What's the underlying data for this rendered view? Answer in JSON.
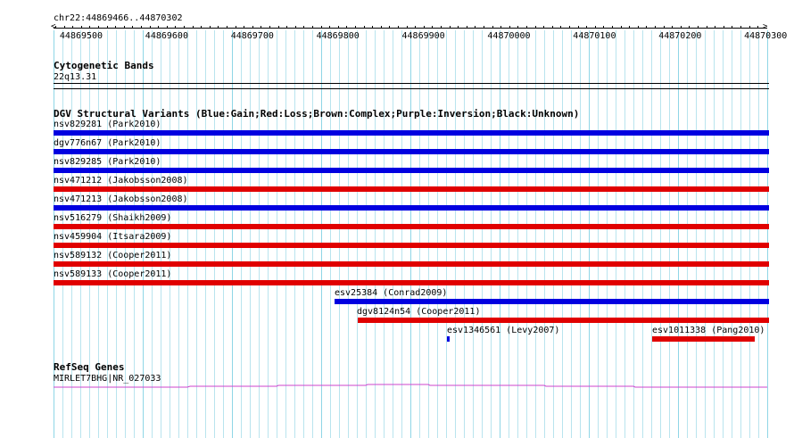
{
  "ruler": {
    "region_label": "chr22:44869466..44870302",
    "ticks": [
      "44869500",
      "44869600",
      "44869700",
      "44869800",
      "44869900",
      "44870000",
      "44870100",
      "44870200",
      "44870300"
    ]
  },
  "cytogenetic": {
    "title": "Cytogenetic Bands",
    "band": "22q13.31"
  },
  "dgv": {
    "title": "DGV Structural Variants (Blue:Gain;Red:Loss;Brown:Complex;Purple:Inversion;Black:Unknown)",
    "colors": {
      "gain": "#0000e0",
      "loss": "#e00000"
    },
    "variants": [
      {
        "label": "nsv829281 (Park2010)",
        "type": "gain"
      },
      {
        "label": "dgv776n67 (Park2010)",
        "type": "gain"
      },
      {
        "label": "nsv829285 (Park2010)",
        "type": "gain"
      },
      {
        "label": "nsv471212 (Jakobsson2008)",
        "type": "loss"
      },
      {
        "label": "nsv471213 (Jakobsson2008)",
        "type": "gain"
      },
      {
        "label": "nsv516279 (Shaikh2009)",
        "type": "loss"
      },
      {
        "label": "nsv459904 (Itsara2009)",
        "type": "loss"
      },
      {
        "label": "nsv589132 (Cooper2011)",
        "type": "loss"
      },
      {
        "label": "nsv589133 (Cooper2011)",
        "type": "loss"
      },
      {
        "label": "esv25384 (Conrad2009)",
        "type": "gain"
      },
      {
        "label": "dgv8124n54 (Cooper2011)",
        "type": "loss"
      },
      {
        "label": "esv1346561 (Levy2007)",
        "type": "gain"
      },
      {
        "label": "esv1011338 (Pang2010)",
        "type": "loss"
      }
    ]
  },
  "refseq": {
    "title": "RefSeq Genes",
    "gene_label": "MIRLET7BHG|NR_027033",
    "color": "#cc44cc"
  }
}
